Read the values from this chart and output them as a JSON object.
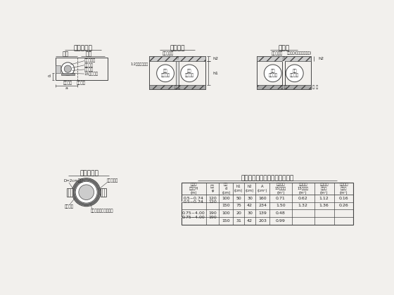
{
  "bg_color": "#f2f0ed",
  "line_color": "#444444",
  "text_color": "#222222",
  "diagram1_title": "浵身横断面",
  "diagram1_sub1": "端部",
  "diagram1_sub2": "中部",
  "diagram2_title": "管节接头",
  "diagram3_title": "沉降缝",
  "diagram4_title": "防水层大样",
  "table_title": "管坡尺寸及一米管坡工程数量表",
  "table_data": [
    [
      "0.5~0.74",
      "120",
      "100",
      "50",
      "30",
      "160",
      "0.71",
      "0.62",
      "1.12",
      "0.16"
    ],
    [
      "",
      "",
      "150",
      "75",
      "42",
      "234",
      "1.50",
      "1.32",
      "1.36",
      "0.26"
    ],
    [
      "0.75~4.00",
      "190",
      "100",
      "20",
      "30",
      "139",
      "0.48",
      "",
      "",
      ""
    ],
    [
      "",
      "",
      "150",
      "31",
      "42",
      "203",
      "0.99",
      "",
      "",
      ""
    ]
  ],
  "col_headers_line1": [
    "事水深",
    "管径",
    "层匹",
    "h1",
    "h2",
    "A",
    "端部平均",
    "中部平均",
    "端部中层",
    "中部中层"
  ],
  "col_headers_line2": [
    "土高度H",
    "φ",
    "d",
    "(cm)",
    "(cm)",
    "(cm²)",
    "15年冻土",
    "15年冻土",
    "中屢雹",
    "中屢雹"
  ],
  "col_headers_line3": [
    "(m)",
    "",
    "(cm)",
    "",
    "",
    "",
    "(m³)",
    "(m³)",
    "(m³)",
    "(m³)"
  ]
}
